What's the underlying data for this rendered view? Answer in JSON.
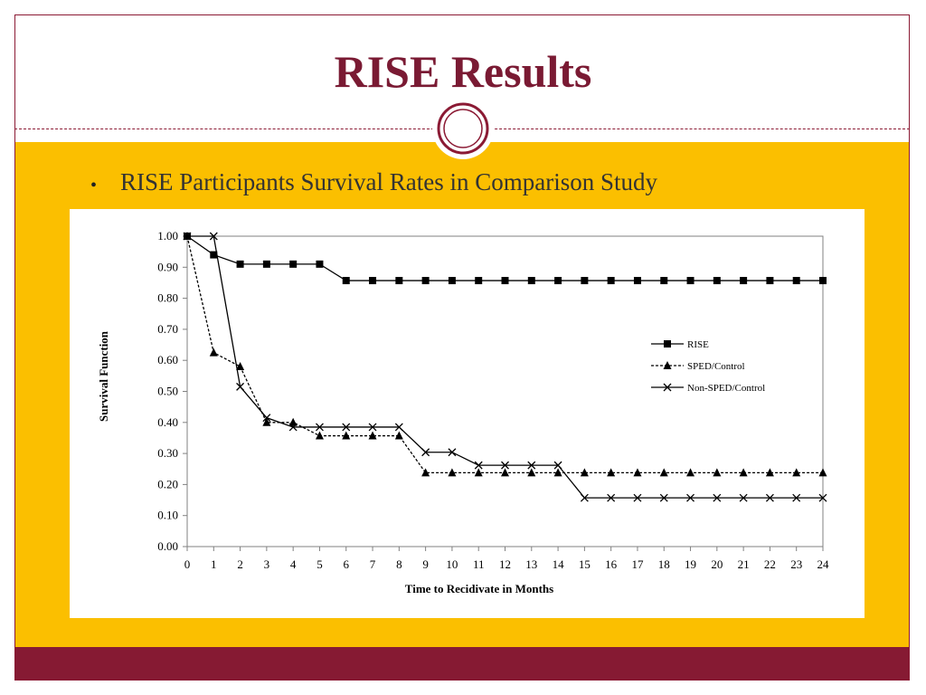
{
  "slide": {
    "title": "RISE Results",
    "bullet_text": "RISE Participants Survival Rates in Comparison Study",
    "colors": {
      "maroon": "#861a33",
      "gold": "#fbbf00",
      "title": "#7a1a33"
    }
  },
  "chart_data": {
    "type": "line",
    "title": "",
    "xlabel": "Time to Recidivate in Months",
    "ylabel": "Survival Function",
    "xlim": [
      0,
      24
    ],
    "ylim": [
      0,
      1
    ],
    "x": [
      0,
      1,
      2,
      3,
      4,
      5,
      6,
      7,
      8,
      9,
      10,
      11,
      12,
      13,
      14,
      15,
      16,
      17,
      18,
      19,
      20,
      21,
      22,
      23,
      24
    ],
    "x_tick_labels": [
      "0",
      "1",
      "2",
      "3",
      "4",
      "5",
      "6",
      "7",
      "8",
      "9",
      "10",
      "11",
      "12",
      "13",
      "14",
      "15",
      "16",
      "17",
      "18",
      "19",
      "20",
      "21",
      "22",
      "23",
      "24"
    ],
    "y_ticks": [
      0,
      0.1,
      0.2,
      0.3,
      0.4,
      0.5,
      0.6,
      0.7,
      0.8,
      0.9,
      1.0
    ],
    "y_tick_labels": [
      "0.00",
      "0.10",
      "0.20",
      "0.30",
      "0.40",
      "0.50",
      "0.60",
      "0.70",
      "0.80",
      "0.90",
      "1.00"
    ],
    "grid": false,
    "legend_position": "right",
    "series": [
      {
        "name": "RISE",
        "marker": "square",
        "line_style": "solid",
        "color": "#000000",
        "values": [
          1.0,
          0.94,
          0.91,
          0.91,
          0.91,
          0.91,
          0.857,
          0.857,
          0.857,
          0.857,
          0.857,
          0.857,
          0.857,
          0.857,
          0.857,
          0.857,
          0.857,
          0.857,
          0.857,
          0.857,
          0.857,
          0.857,
          0.857,
          0.857,
          0.857
        ]
      },
      {
        "name": "SPED/Control",
        "marker": "triangle",
        "line_style": "dashed",
        "color": "#000000",
        "values": [
          1.0,
          0.625,
          0.58,
          0.4,
          0.4,
          0.357,
          0.357,
          0.357,
          0.357,
          0.238,
          0.238,
          0.238,
          0.238,
          0.238,
          0.238,
          0.238,
          0.238,
          0.238,
          0.238,
          0.238,
          0.238,
          0.238,
          0.238,
          0.238,
          0.238
        ]
      },
      {
        "name": "Non-SPED/Control",
        "marker": "x",
        "line_style": "solid",
        "color": "#000000",
        "values": [
          1.0,
          1.0,
          0.515,
          0.415,
          0.385,
          0.385,
          0.385,
          0.385,
          0.385,
          0.304,
          0.304,
          0.262,
          0.262,
          0.262,
          0.262,
          0.157,
          0.157,
          0.157,
          0.157,
          0.157,
          0.157,
          0.157,
          0.157,
          0.157,
          0.157
        ]
      }
    ]
  }
}
